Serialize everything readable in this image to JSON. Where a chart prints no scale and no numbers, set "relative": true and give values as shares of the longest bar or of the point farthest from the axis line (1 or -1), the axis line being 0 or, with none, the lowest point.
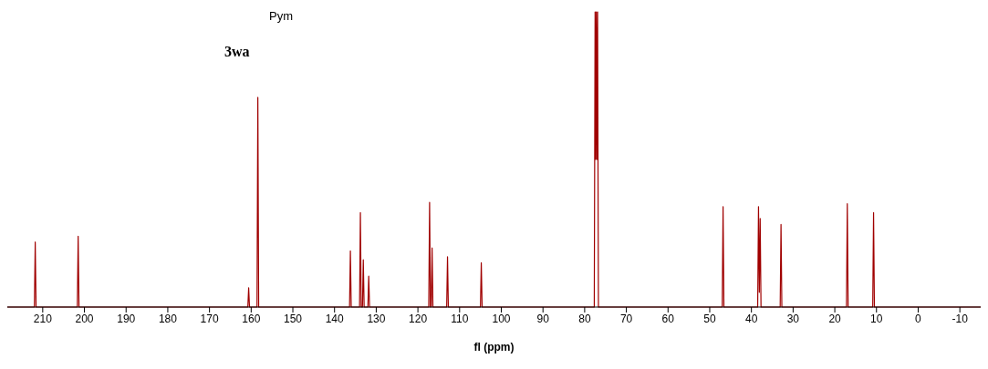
{
  "chart_data": {
    "type": "line",
    "relative": true,
    "xlabel": "fl (ppm)",
    "annotations": [
      "Pym",
      "3wa"
    ],
    "xlim": [
      218.5,
      -15
    ],
    "xticks": [
      210,
      200,
      190,
      180,
      170,
      160,
      150,
      140,
      130,
      120,
      110,
      100,
      90,
      80,
      70,
      60,
      50,
      40,
      30,
      20,
      10,
      0,
      -10
    ],
    "tick_labels": "x",
    "grid": false,
    "legend": false,
    "marker": "none",
    "line_style": "solid",
    "x": [
      218.5,
      212.0,
      211.8,
      211.6,
      201.7,
      201.5,
      201.3,
      160.8,
      160.6,
      160.4,
      158.6,
      158.4,
      158.2,
      136.4,
      136.2,
      136.0,
      134.0,
      133.8,
      133.6,
      133.3,
      133.1,
      132.9,
      132.0,
      131.8,
      131.6,
      117.4,
      117.2,
      117.0,
      116.8,
      116.6,
      116.4,
      113.1,
      112.9,
      112.7,
      105.0,
      104.8,
      104.6,
      77.7,
      77.5,
      77.35,
      77.2,
      77.05,
      76.9,
      76.7,
      47.0,
      46.8,
      46.6,
      38.5,
      38.3,
      38.1,
      37.9,
      37.7,
      33.1,
      32.9,
      32.7,
      17.2,
      17.0,
      16.8,
      10.9,
      10.7,
      10.5,
      -15
    ],
    "series": [
      {
        "color": "#a00000",
        "values": [
          0,
          0,
          0.22,
          0,
          0,
          0.24,
          0,
          0,
          0.065,
          0,
          0,
          0.71,
          0,
          0,
          0.19,
          0,
          0,
          0.32,
          0,
          0,
          0.16,
          0,
          0,
          0.105,
          0,
          0,
          0.355,
          0,
          0,
          0.2,
          0,
          0,
          0.17,
          0,
          0,
          0.15,
          0,
          0,
          1,
          0.5,
          1,
          0.5,
          1,
          0,
          0,
          0.34,
          0,
          0,
          0.34,
          0.05,
          0.3,
          0,
          0,
          0.28,
          0,
          0,
          0.35,
          0,
          0,
          0.32,
          0,
          0
        ]
      }
    ]
  }
}
